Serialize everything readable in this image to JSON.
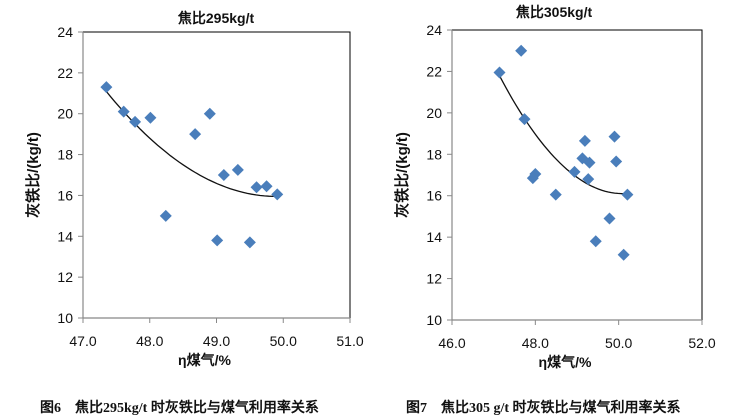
{
  "chart_data": [
    {
      "type": "scatter",
      "title": "焦比295kg/t",
      "xlabel": "η煤气/%",
      "ylabel": "灰铁比/(kg/t)",
      "xlim": [
        47.0,
        51.0
      ],
      "ylim": [
        10,
        24
      ],
      "xticks": [
        "47.0",
        "48.0",
        "49.0",
        "50.0",
        "51.0"
      ],
      "yticks": [
        "10",
        "12",
        "14",
        "16",
        "18",
        "20",
        "22",
        "24"
      ],
      "caption": "图6    焦比295kg/t 时灰铁比与煤气利用率关系",
      "marker_color": "#4a7ebb",
      "points": [
        [
          47.35,
          21.3
        ],
        [
          47.61,
          20.1
        ],
        [
          47.78,
          19.6
        ],
        [
          48.01,
          19.8
        ],
        [
          48.24,
          15.0
        ],
        [
          48.68,
          19.0
        ],
        [
          48.9,
          20.0
        ],
        [
          49.01,
          13.8
        ],
        [
          49.11,
          17.0
        ],
        [
          49.32,
          17.25
        ],
        [
          49.5,
          13.7
        ],
        [
          49.6,
          16.4
        ],
        [
          49.75,
          16.45
        ],
        [
          49.91,
          16.05
        ]
      ],
      "trendline": {
        "type": "polynomial",
        "x_range": [
          47.35,
          49.91
        ],
        "vertex": [
          49.9,
          15.95
        ],
        "a": 0.79
      }
    },
    {
      "type": "scatter",
      "title": "焦比305kg/t",
      "xlabel": "η煤气/%",
      "ylabel": "灰铁比/(kg/t)",
      "xlim": [
        46.0,
        52.0
      ],
      "ylim": [
        10,
        24
      ],
      "xticks": [
        "46.0",
        "48.0",
        "50.0",
        "52.0"
      ],
      "yticks": [
        "10",
        "12",
        "14",
        "16",
        "18",
        "20",
        "22",
        "24"
      ],
      "caption": "图7    焦比305 g/t 时灰铁比与煤气利用率关系",
      "marker_color": "#4a7ebb",
      "points": [
        [
          47.14,
          21.95
        ],
        [
          47.66,
          23.0
        ],
        [
          47.74,
          19.7
        ],
        [
          48.0,
          17.05
        ],
        [
          47.94,
          16.85
        ],
        [
          48.49,
          16.05
        ],
        [
          48.94,
          17.15
        ],
        [
          49.19,
          18.65
        ],
        [
          49.13,
          17.8
        ],
        [
          49.3,
          17.6
        ],
        [
          49.27,
          16.8
        ],
        [
          49.9,
          18.85
        ],
        [
          49.94,
          17.65
        ],
        [
          50.21,
          16.05
        ],
        [
          49.78,
          14.9
        ],
        [
          49.45,
          13.8
        ],
        [
          50.12,
          13.15
        ]
      ],
      "trendline": {
        "type": "polynomial",
        "x_range": [
          47.14,
          50.21
        ],
        "vertex": [
          50.1,
          16.1
        ],
        "a": 0.65
      }
    }
  ]
}
